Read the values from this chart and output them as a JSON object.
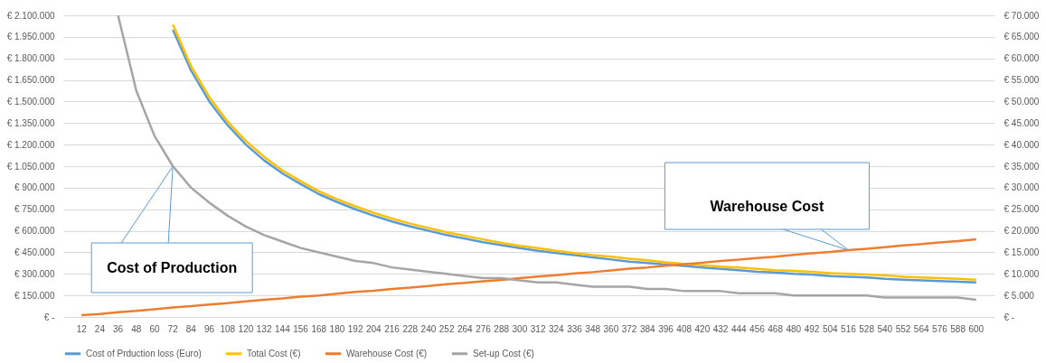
{
  "chart_data": {
    "type": "line",
    "categories": [
      "12",
      "24",
      "36",
      "48",
      "60",
      "72",
      "84",
      "96",
      "108",
      "120",
      "132",
      "144",
      "156",
      "168",
      "180",
      "192",
      "204",
      "216",
      "228",
      "240",
      "252",
      "264",
      "276",
      "288",
      "300",
      "312",
      "324",
      "336",
      "348",
      "360",
      "372",
      "384",
      "396",
      "408",
      "420",
      "432",
      "444",
      "456",
      "468",
      "480",
      "492",
      "504",
      "516",
      "528",
      "540",
      "552",
      "564",
      "576",
      "588",
      "600"
    ],
    "series": [
      {
        "name": "Cost of Prduction loss (Euro)",
        "color": "#5b9bd5",
        "values": [
          null,
          null,
          null,
          null,
          null,
          2000000,
          1715000,
          1500000,
          1335000,
          1200000,
          1090000,
          1000000,
          925000,
          855000,
          800000,
          750000,
          705000,
          665000,
          630000,
          600000,
          570000,
          545000,
          520000,
          500000,
          480000,
          460000,
          445000,
          430000,
          415000,
          400000,
          385000,
          375000,
          365000,
          355000,
          345000,
          335000,
          325000,
          315000,
          310000,
          300000,
          295000,
          285000,
          280000,
          275000,
          265000,
          260000,
          255000,
          250000,
          245000,
          240000
        ]
      },
      {
        "name": "Total Cost (€)",
        "color": "#ffc000",
        "values": [
          null,
          null,
          null,
          null,
          null,
          2035000,
          1745000,
          1530000,
          1360000,
          1225000,
          1115000,
          1020000,
          945000,
          875000,
          820000,
          770000,
          725000,
          685000,
          650000,
          620000,
          590000,
          565000,
          540000,
          515000,
          495000,
          480000,
          460000,
          445000,
          430000,
          420000,
          405000,
          395000,
          380000,
          370000,
          360000,
          350000,
          345000,
          335000,
          325000,
          320000,
          315000,
          305000,
          300000,
          295000,
          290000,
          280000,
          275000,
          270000,
          265000,
          260000
        ]
      },
      {
        "name": "Warehouse Cost (€)",
        "color": "#ed7d31",
        "axis": "y2",
        "values": [
          400,
          700,
          1100,
          1400,
          1800,
          2200,
          2500,
          2900,
          3200,
          3600,
          4000,
          4300,
          4700,
          5000,
          5400,
          5800,
          6100,
          6500,
          6800,
          7200,
          7600,
          7900,
          8300,
          8600,
          9000,
          9400,
          9700,
          10100,
          10400,
          10800,
          11200,
          11500,
          11900,
          12200,
          12600,
          13000,
          13300,
          13700,
          14000,
          14400,
          14800,
          15100,
          15500,
          15800,
          16200,
          16600,
          16900,
          17300,
          17600,
          18000
        ]
      },
      {
        "name": "Set-up Cost (€)",
        "color": "#a5a5a5",
        "axis": "y2",
        "values": [
          null,
          null,
          70000,
          52500,
          42000,
          35000,
          30000,
          26500,
          23500,
          21000,
          19000,
          17500,
          16000,
          15000,
          14000,
          13000,
          12500,
          11500,
          11000,
          10500,
          10000,
          9500,
          9000,
          9000,
          8500,
          8000,
          8000,
          7500,
          7000,
          7000,
          7000,
          6500,
          6500,
          6000,
          6000,
          6000,
          5500,
          5500,
          5500,
          5000,
          5000,
          5000,
          5000,
          5000,
          4500,
          4500,
          4500,
          4500,
          4500,
          4000
        ]
      }
    ],
    "ylim": [
      0,
      2100000
    ],
    "yticks": [
      {
        "value": 0,
        "label": "€ -"
      },
      {
        "value": 150000,
        "label": "€ 150.000"
      },
      {
        "value": 300000,
        "label": "€ 300.000"
      },
      {
        "value": 450000,
        "label": "€ 450.000"
      },
      {
        "value": 600000,
        "label": "€ 600.000"
      },
      {
        "value": 750000,
        "label": "€ 750.000"
      },
      {
        "value": 900000,
        "label": "€ 900.000"
      },
      {
        "value": 1050000,
        "label": "€ 1.050.000"
      },
      {
        "value": 1200000,
        "label": "€ 1.200.000"
      },
      {
        "value": 1350000,
        "label": "€ 1.350.000"
      },
      {
        "value": 1500000,
        "label": "€ 1.500.000"
      },
      {
        "value": 1650000,
        "label": "€ 1.650.000"
      },
      {
        "value": 1800000,
        "label": "€ 1.800.000"
      },
      {
        "value": 1950000,
        "label": "€ 1.950.000"
      },
      {
        "value": 2100000,
        "label": "€ 2.100.000"
      }
    ],
    "y2lim": [
      0,
      70000
    ],
    "y2ticks": [
      {
        "value": 0,
        "label": "€ -"
      },
      {
        "value": 5000,
        "label": "€ 5.000"
      },
      {
        "value": 10000,
        "label": "€ 10.000"
      },
      {
        "value": 15000,
        "label": "€ 15.000"
      },
      {
        "value": 20000,
        "label": "€ 20.000"
      },
      {
        "value": 25000,
        "label": "€ 25.000"
      },
      {
        "value": 30000,
        "label": "€ 30.000"
      },
      {
        "value": 35000,
        "label": "€ 35.000"
      },
      {
        "value": 40000,
        "label": "€ 40.000"
      },
      {
        "value": 45000,
        "label": "€ 45.000"
      },
      {
        "value": 50000,
        "label": "€ 50.000"
      },
      {
        "value": 55000,
        "label": "€ 55.000"
      },
      {
        "value": 60000,
        "label": "€ 60.000"
      },
      {
        "value": 65000,
        "label": "€ 65.000"
      },
      {
        "value": 70000,
        "label": "€ 70.000"
      }
    ],
    "annotations": [
      {
        "text": "Cost of Production",
        "x": "72",
        "y": 1050000
      },
      {
        "text": "Warehouse Cost",
        "x": "516",
        "y": 465000
      }
    ],
    "grid": "y",
    "legend": "bottom",
    "marker": "none",
    "line_style": "solid"
  }
}
